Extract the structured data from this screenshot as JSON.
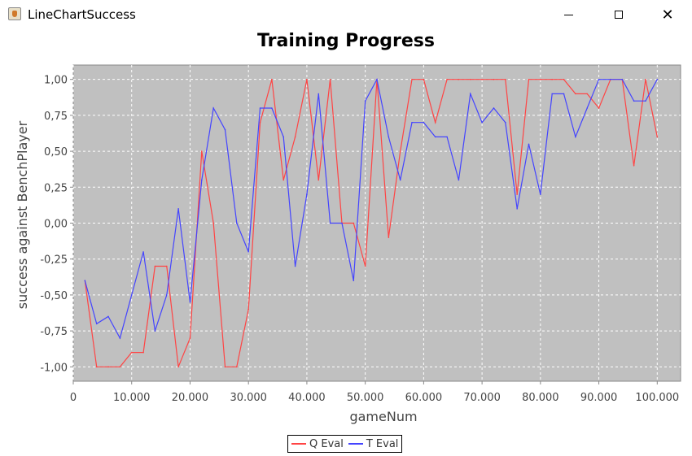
{
  "window": {
    "title": "LineChartSuccess",
    "app_icon": "java-cup-icon",
    "controls": {
      "minimize_icon": "minimize-icon",
      "maximize_icon": "maximize-icon",
      "close_icon": "close-icon",
      "close_glyph": "✕"
    }
  },
  "chart_data": {
    "type": "line",
    "title": "Training Progress",
    "xlabel": "gameNum",
    "ylabel": "success against BenchPlayer",
    "xlim": [
      0,
      104000
    ],
    "ylim": [
      -1.1,
      1.1
    ],
    "xticks": [
      0,
      10000,
      20000,
      30000,
      40000,
      50000,
      60000,
      70000,
      80000,
      90000,
      100000
    ],
    "xtick_labels": [
      "0",
      "10.000",
      "20.000",
      "30.000",
      "40.000",
      "50.000",
      "60.000",
      "70.000",
      "80.000",
      "90.000",
      "100.000"
    ],
    "yticks": [
      -1.0,
      -0.75,
      -0.5,
      -0.25,
      0.0,
      0.25,
      0.5,
      0.75,
      1.0
    ],
    "ytick_labels": [
      "-1,00",
      "-0,75",
      "-0,50",
      "-0,25",
      "0,00",
      "0,25",
      "0,50",
      "0,75",
      "1,00"
    ],
    "grid": true,
    "legend_position": "bottom-center",
    "background_color": "#c0c0c0",
    "series": [
      {
        "name": "Q Eval",
        "color": "#ff4444",
        "x": [
          2000,
          4000,
          6000,
          8000,
          10000,
          12000,
          14000,
          16000,
          18000,
          20000,
          22000,
          24000,
          26000,
          28000,
          30000,
          32000,
          34000,
          36000,
          38000,
          40000,
          42000,
          44000,
          46000,
          48000,
          50000,
          52000,
          54000,
          56000,
          58000,
          60000,
          62000,
          64000,
          66000,
          68000,
          70000,
          72000,
          74000,
          76000,
          78000,
          80000,
          82000,
          84000,
          86000,
          88000,
          90000,
          92000,
          94000,
          96000,
          98000,
          100000
        ],
        "values": [
          -0.4,
          -1.0,
          -1.0,
          -1.0,
          -0.9,
          -0.9,
          -0.3,
          -0.3,
          -1.0,
          -0.8,
          0.5,
          0.0,
          -1.0,
          -1.0,
          -0.6,
          0.7,
          1.0,
          0.3,
          0.6,
          1.0,
          0.3,
          1.0,
          0.0,
          0.0,
          -0.3,
          1.0,
          -0.1,
          0.5,
          1.0,
          1.0,
          0.7,
          1.0,
          1.0,
          1.0,
          1.0,
          1.0,
          1.0,
          0.2,
          1.0,
          1.0,
          1.0,
          1.0,
          0.9,
          0.9,
          0.8,
          1.0,
          1.0,
          0.4,
          1.0,
          0.6
        ]
      },
      {
        "name": "T Eval",
        "color": "#4444ff",
        "x": [
          2000,
          4000,
          6000,
          8000,
          10000,
          12000,
          14000,
          16000,
          18000,
          20000,
          22000,
          24000,
          26000,
          28000,
          30000,
          32000,
          34000,
          36000,
          38000,
          40000,
          42000,
          44000,
          46000,
          48000,
          50000,
          52000,
          54000,
          56000,
          58000,
          60000,
          62000,
          64000,
          66000,
          68000,
          70000,
          72000,
          74000,
          76000,
          78000,
          80000,
          82000,
          84000,
          86000,
          88000,
          90000,
          92000,
          94000,
          96000,
          98000,
          100000
        ],
        "values": [
          -0.4,
          -0.7,
          -0.65,
          -0.8,
          -0.5,
          -0.2,
          -0.75,
          -0.5,
          0.1,
          -0.55,
          0.3,
          0.8,
          0.65,
          0.0,
          -0.2,
          0.8,
          0.8,
          0.6,
          -0.3,
          0.2,
          0.9,
          0.0,
          0.0,
          -0.4,
          0.85,
          1.0,
          0.6,
          0.3,
          0.7,
          0.7,
          0.6,
          0.6,
          0.3,
          0.9,
          0.7,
          0.8,
          0.7,
          0.1,
          0.55,
          0.2,
          0.9,
          0.9,
          0.6,
          0.8,
          1.0,
          1.0,
          1.0,
          0.85,
          0.85,
          1.0
        ]
      }
    ]
  }
}
